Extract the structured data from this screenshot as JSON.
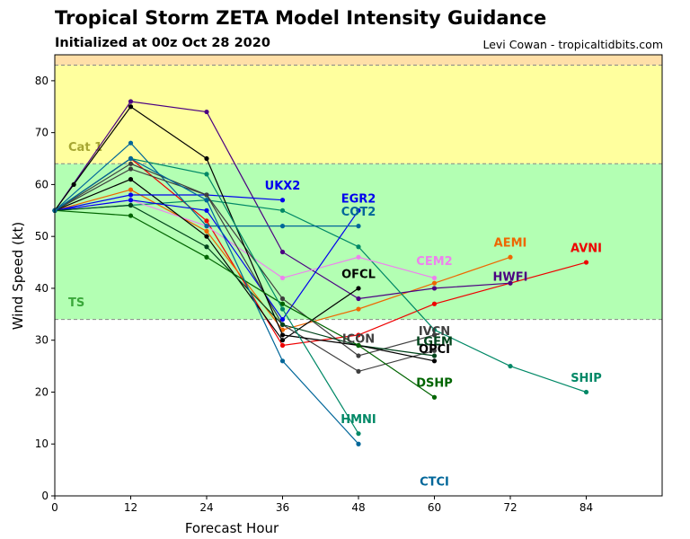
{
  "header": {
    "title": "Tropical Storm ZETA Model Intensity Guidance",
    "subtitle": "Initialized at 00z Oct 28 2020",
    "credit": "Levi Cowan - tropicaltidbits.com"
  },
  "chart_data": {
    "type": "line",
    "xlabel": "Forecast Hour",
    "ylabel": "Wind Speed (kt)",
    "xlim": [
      0,
      96
    ],
    "ylim": [
      0,
      85
    ],
    "xticks": [
      0,
      12,
      24,
      36,
      48,
      60,
      72,
      84
    ],
    "yticks": [
      0,
      10,
      20,
      30,
      40,
      50,
      60,
      70,
      80
    ],
    "bands": [
      {
        "label": "TS",
        "from": 34,
        "to": 64,
        "color": "#b3ffb3",
        "label_color": "#3aa83a",
        "label_y": 36.5
      },
      {
        "label": "Cat 1",
        "from": 64,
        "to": 83,
        "color": "#ffff9e",
        "label_color": "#a6a632",
        "label_y": 66.5
      },
      {
        "label": "",
        "from": 83,
        "to": 85,
        "color": "#ffdfa8",
        "label_color": "#000000",
        "label_y": 84
      }
    ],
    "series": [
      {
        "name": "AVNI",
        "color": "#ee0000",
        "x": [
          0,
          12,
          24,
          36,
          48,
          60,
          72,
          84
        ],
        "y": [
          55,
          65,
          53,
          29,
          31,
          37,
          41,
          45
        ],
        "label_x": 84,
        "label_y": 47
      },
      {
        "name": "AEMI",
        "color": "#ee6600",
        "x": [
          0,
          12,
          24,
          36,
          48,
          60,
          72
        ],
        "y": [
          55,
          59,
          51,
          32,
          36,
          41,
          46
        ],
        "label_x": 72,
        "label_y": 48
      },
      {
        "name": "HWFI",
        "color": "#4b0082",
        "x": [
          0,
          12,
          24,
          36,
          48,
          60,
          72
        ],
        "y": [
          55,
          76,
          74,
          47,
          38,
          40,
          41
        ],
        "label_x": 72,
        "label_y": 41.5
      },
      {
        "name": "SHIP",
        "color": "#008866",
        "x": [
          0,
          12,
          24,
          36,
          48,
          60,
          72,
          84
        ],
        "y": [
          55,
          56,
          57,
          55,
          48,
          32,
          25,
          20
        ],
        "label_x": 84,
        "label_y": 22
      },
      {
        "name": "CEM2",
        "color": "#ee82ee",
        "x": [
          0,
          12,
          24,
          36,
          48,
          60
        ],
        "y": [
          55,
          57,
          52,
          42,
          46,
          42
        ],
        "label_x": 60,
        "label_y": 44.5
      },
      {
        "name": "OFCL",
        "color": "#000000",
        "x": [
          0,
          12,
          24,
          36,
          48
        ],
        "y": [
          55,
          61,
          50,
          30,
          40
        ],
        "label_x": 48,
        "label_y": 42
      },
      {
        "name": "UKX2",
        "color": "#0000ee",
        "x": [
          0,
          12,
          24,
          36
        ],
        "y": [
          55,
          58,
          58,
          57
        ],
        "label_x": 36,
        "label_y": 59
      },
      {
        "name": "EGR2",
        "color": "#0000ee",
        "x": [
          0,
          12,
          24,
          36,
          48
        ],
        "y": [
          55,
          57,
          55,
          34,
          55
        ],
        "label_x": 48,
        "label_y": 56.5
      },
      {
        "name": "COT2",
        "color": "#006699",
        "x": [
          0,
          12,
          24,
          36,
          48
        ],
        "y": [
          55,
          68,
          52,
          52,
          52
        ],
        "label_x": 48,
        "label_y": 54
      },
      {
        "name": "ICON",
        "color": "#3f3f3f",
        "x": [
          0,
          12,
          24,
          36,
          48,
          60
        ],
        "y": [
          55,
          63,
          58,
          33,
          24,
          28
        ],
        "label_x": 48,
        "label_y": 29.5
      },
      {
        "name": "IVCN",
        "color": "#3f3f3f",
        "x": [
          0,
          12,
          24,
          36,
          48,
          60
        ],
        "y": [
          55,
          64,
          58,
          38,
          27,
          31
        ],
        "label_x": 60,
        "label_y": 31
      },
      {
        "name": "LGEM",
        "color": "#00441b",
        "x": [
          0,
          12,
          24,
          36,
          48,
          60
        ],
        "y": [
          55,
          56,
          48,
          33,
          29,
          27
        ],
        "label_x": 60,
        "label_y": 29
      },
      {
        "name": "OPCI",
        "color": "#000000",
        "x": [
          0,
          3,
          12,
          24,
          36,
          48,
          60
        ],
        "y": [
          55,
          60,
          75,
          65,
          31,
          29,
          26
        ],
        "label_x": 60,
        "label_y": 27.5
      },
      {
        "name": "DSHP",
        "color": "#006400",
        "x": [
          0,
          12,
          24,
          36,
          48,
          60
        ],
        "y": [
          55,
          54,
          46,
          37,
          29,
          19
        ],
        "label_x": 60,
        "label_y": 21
      },
      {
        "name": "HMNI",
        "color": "#008866",
        "x": [
          0,
          12,
          24,
          36,
          48
        ],
        "y": [
          55,
          65,
          62,
          36,
          12
        ],
        "label_x": 48,
        "label_y": 14
      },
      {
        "name": "CTCI",
        "color": "#006699",
        "x": [
          0,
          12,
          24,
          36,
          48
        ],
        "y": [
          55,
          65,
          57,
          26,
          10
        ],
        "label_x": 60,
        "label_y": 2
      }
    ]
  }
}
